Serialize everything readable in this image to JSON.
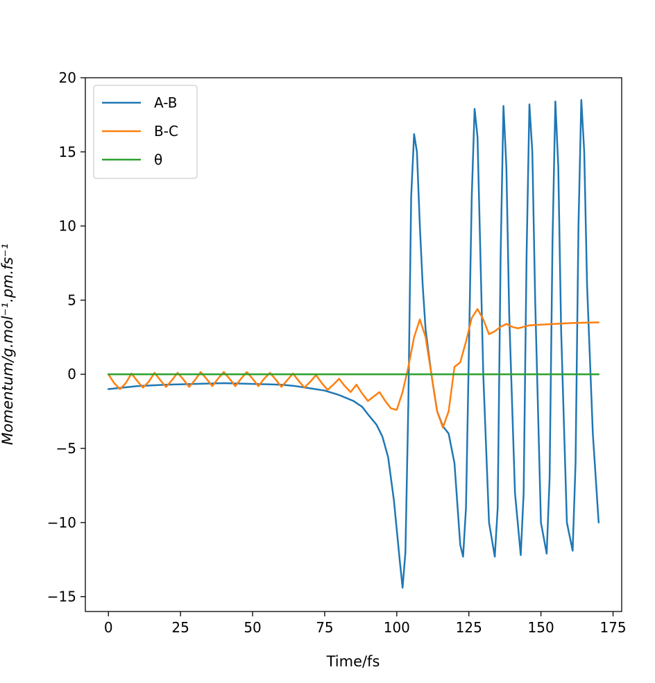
{
  "chart_data": {
    "type": "line",
    "title": "",
    "xlabel": "Time/fs",
    "ylabel": "Momentum/g.mol⁻¹.pm.fs⁻¹",
    "xlim": [
      -8,
      178
    ],
    "ylim": [
      -16,
      20
    ],
    "xticks": [
      0,
      25,
      50,
      75,
      100,
      125,
      150,
      175
    ],
    "yticks": [
      20,
      15,
      10,
      5,
      0,
      -5,
      -10,
      -15
    ],
    "ytick_labels": [
      "20",
      "15",
      "10",
      "5",
      "0",
      "−5",
      "−10",
      "−15"
    ],
    "grid": false,
    "legend_position": "top-left",
    "series": [
      {
        "name": "A-B",
        "color": "#1f77b4",
        "x": [
          0,
          10,
          20,
          30,
          40,
          50,
          60,
          65,
          70,
          75,
          80,
          85,
          88,
          90,
          93,
          95,
          97,
          99,
          101,
          102,
          103,
          104,
          105,
          106,
          107,
          108,
          109,
          110,
          112,
          114,
          116,
          118,
          120,
          122,
          123,
          124,
          126,
          127,
          128,
          129,
          130,
          132,
          134,
          135,
          136,
          137,
          138,
          139,
          141,
          143,
          144,
          145,
          146,
          147,
          148,
          150,
          152,
          153,
          154,
          155,
          156,
          157,
          159,
          161,
          162,
          163,
          164,
          165,
          166,
          168,
          170
        ],
        "y": [
          -1.0,
          -0.8,
          -0.7,
          -0.65,
          -0.6,
          -0.65,
          -0.7,
          -0.8,
          -0.95,
          -1.1,
          -1.4,
          -1.8,
          -2.2,
          -2.7,
          -3.4,
          -4.2,
          -5.6,
          -8.5,
          -12.5,
          -14.4,
          -12.0,
          -2.0,
          12.0,
          16.2,
          15.0,
          10.0,
          6.0,
          3.0,
          0.0,
          -2.5,
          -3.5,
          -4.0,
          -6.0,
          -11.5,
          -12.3,
          -9.0,
          12.0,
          17.9,
          16.0,
          8.0,
          0.0,
          -10.0,
          -12.3,
          -9.0,
          8.0,
          18.1,
          14.0,
          4.0,
          -8.0,
          -12.2,
          -8.0,
          8.0,
          18.2,
          15.0,
          5.0,
          -10.0,
          -12.1,
          -7.0,
          9.0,
          18.4,
          14.0,
          3.0,
          -10.0,
          -11.9,
          -6.0,
          10.0,
          18.5,
          15.0,
          6.0,
          -4.0,
          -10.0
        ]
      },
      {
        "name": "B-C",
        "color": "#ff7f0e",
        "x": [
          0,
          2,
          4,
          6,
          8,
          10,
          12,
          14,
          16,
          18,
          20,
          22,
          24,
          26,
          28,
          30,
          32,
          34,
          36,
          38,
          40,
          42,
          44,
          46,
          48,
          50,
          52,
          54,
          56,
          58,
          60,
          62,
          64,
          66,
          68,
          70,
          72,
          74,
          76,
          78,
          80,
          82,
          84,
          86,
          88,
          90,
          92,
          94,
          96,
          98,
          100,
          102,
          104,
          106,
          108,
          110,
          112,
          114,
          116,
          118,
          120,
          122,
          124,
          126,
          128,
          130,
          132,
          134,
          136,
          138,
          140,
          142,
          144,
          146,
          150,
          155,
          160,
          165,
          170
        ],
        "y": [
          0.0,
          -0.6,
          -1.0,
          -0.6,
          0.05,
          -0.45,
          -0.9,
          -0.5,
          0.1,
          -0.4,
          -0.85,
          -0.4,
          0.1,
          -0.35,
          -0.85,
          -0.4,
          0.15,
          -0.3,
          -0.8,
          -0.3,
          0.15,
          -0.3,
          -0.8,
          -0.3,
          0.15,
          -0.3,
          -0.8,
          -0.3,
          0.1,
          -0.35,
          -0.85,
          -0.4,
          0.05,
          -0.45,
          -0.9,
          -0.5,
          -0.05,
          -0.6,
          -1.05,
          -0.7,
          -0.3,
          -0.8,
          -1.2,
          -0.7,
          -1.3,
          -1.8,
          -1.5,
          -1.2,
          -1.8,
          -2.3,
          -2.4,
          -1.2,
          0.5,
          2.5,
          3.7,
          2.5,
          0.0,
          -2.5,
          -3.6,
          -2.5,
          0.5,
          0.8,
          2.2,
          3.8,
          4.4,
          3.7,
          2.7,
          2.9,
          3.2,
          3.4,
          3.2,
          3.1,
          3.2,
          3.3,
          3.35,
          3.4,
          3.45,
          3.48,
          3.5
        ]
      },
      {
        "name": "θ",
        "color": "#2ca02c",
        "x": [
          0,
          170
        ],
        "y": [
          0.0,
          0.0
        ]
      }
    ]
  }
}
